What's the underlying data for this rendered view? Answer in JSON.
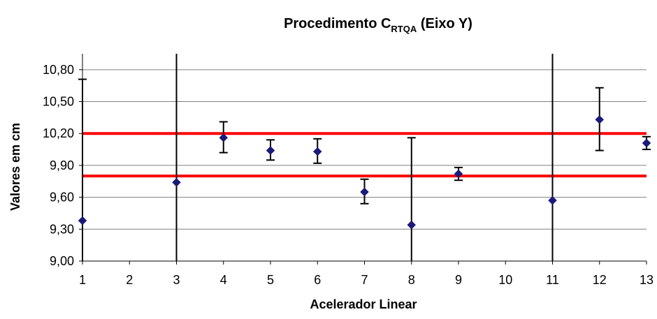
{
  "chart_data": {
    "type": "scatter",
    "title": "Procedimento C",
    "title_subscript": "RTQA",
    "title_suffix": " (Eixo Y)",
    "xlabel": "Acelerador Linear",
    "ylabel": "Valores em cm",
    "x_categories": [
      "1",
      "2",
      "3",
      "4",
      "5",
      "6",
      "7",
      "8",
      "9",
      "10",
      "11",
      "12",
      "13"
    ],
    "ylim": [
      9.0,
      10.95
    ],
    "y_ticks": [
      "9,00",
      "9,30",
      "9,60",
      "9,90",
      "10,20",
      "10,50",
      "10,80"
    ],
    "y_tick_values": [
      9.0,
      9.3,
      9.6,
      9.9,
      10.2,
      10.5,
      10.8
    ],
    "grid": true,
    "series": [
      {
        "marker_color": "#1a1a7a",
        "points": [
          {
            "x": 1,
            "y": 9.38,
            "err_low": 9.0,
            "err_high": 10.71
          },
          {
            "x": 3,
            "y": 9.74,
            "err_low": 9.0,
            "err_high": 10.95
          },
          {
            "x": 4,
            "y": 10.16,
            "err_low": 10.02,
            "err_high": 10.31
          },
          {
            "x": 5,
            "y": 10.04,
            "err_low": 9.95,
            "err_high": 10.14
          },
          {
            "x": 6,
            "y": 10.03,
            "err_low": 9.92,
            "err_high": 10.15
          },
          {
            "x": 7,
            "y": 9.65,
            "err_low": 9.54,
            "err_high": 9.77
          },
          {
            "x": 8,
            "y": 9.34,
            "err_low": 9.0,
            "err_high": 10.16
          },
          {
            "x": 9,
            "y": 9.82,
            "err_low": 9.76,
            "err_high": 9.88
          },
          {
            "x": 11,
            "y": 9.57,
            "err_low": 9.0,
            "err_high": 10.95
          },
          {
            "x": 12,
            "y": 10.33,
            "err_low": 10.04,
            "err_high": 10.63
          },
          {
            "x": 13,
            "y": 10.11,
            "err_low": 10.05,
            "err_high": 10.17
          }
        ]
      }
    ],
    "reference_lines": [
      {
        "y": 10.2,
        "color": "#ff0000"
      },
      {
        "y": 9.8,
        "color": "#ff0000"
      }
    ]
  }
}
